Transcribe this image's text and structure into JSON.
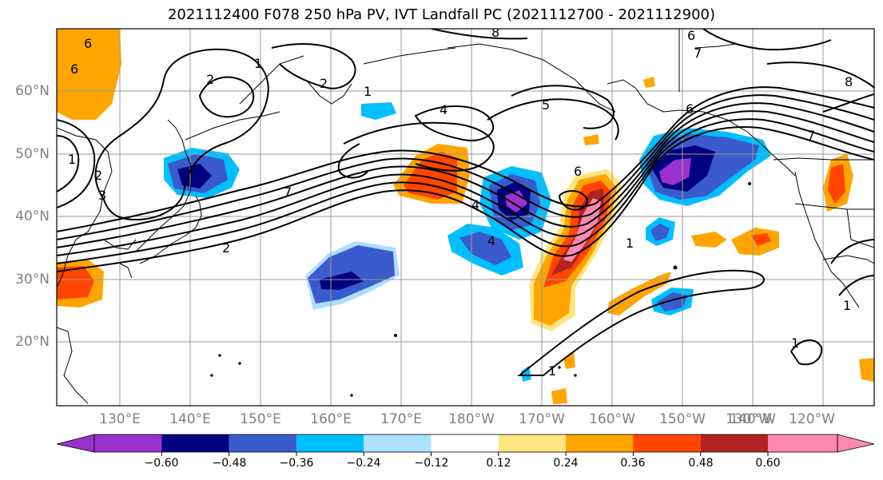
{
  "title": "2021112400 F078 250 hPa PV, IVT Landfall PC (2021112700 - 2021112900)",
  "latitude_labels": [
    "60°N",
    "50°N",
    "40°N",
    "30°N",
    "20°N"
  ],
  "longitude_labels": [
    "130°E",
    "140°E",
    "150°E",
    "160°E",
    "170°E",
    "180°W",
    "170°W",
    "160°W",
    "150°W",
    "140°W",
    "130°W",
    "120°W"
  ],
  "colorbar": {
    "colors": [
      "#9932CC",
      "#000080",
      "#3A5BCB",
      "#00BFFF",
      "#ADDFFF",
      "#FFFFFF",
      "#FFE680",
      "#FFA500",
      "#FF4500",
      "#B22222",
      "#FF88B0"
    ],
    "tick_labels": [
      "−0.60",
      "−0.48",
      "−0.36",
      "−0.24",
      "−0.12",
      "0.12",
      "0.24",
      "0.36",
      "0.48",
      "0.60"
    ]
  },
  "contour_labels": [
    "6",
    "6",
    "8",
    "1",
    "2",
    "2",
    "4",
    "4",
    "5",
    "6",
    "6",
    "6",
    "7",
    "7",
    "8",
    "1",
    "2",
    "3",
    "7",
    "2",
    "4",
    "1",
    "1",
    "1",
    "1",
    "1"
  ]
}
